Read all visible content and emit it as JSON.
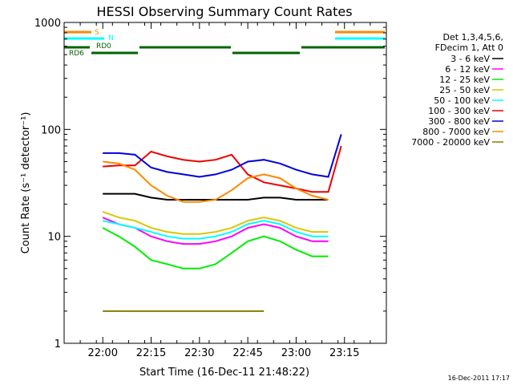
{
  "chart_data": {
    "type": "line",
    "title": "HESSI Observing Summary Count Rates",
    "xlabel": "Start Time (16-Dec-11 21:48:22)",
    "ylabel": "Count Rate (s⁻¹ detector⁻¹)",
    "yscale": "log",
    "ylim": [
      1,
      1000
    ],
    "xlim": [
      "21:48",
      "23:28"
    ],
    "x_tick_labels": [
      "22:00",
      "22:15",
      "22:30",
      "22:45",
      "23:00",
      "23:15"
    ],
    "y_tick_labels": [
      "1",
      "10",
      "100",
      "1000"
    ],
    "grid": false,
    "legend": {
      "placement": "right",
      "header": [
        "Det 1,3,4,5,6,",
        "FDecim 1, Att 0"
      ],
      "entries": [
        {
          "label": "3 - 6 keV",
          "color": "#000000"
        },
        {
          "label": "6 - 12 keV",
          "color": "#ff00ff"
        },
        {
          "label": "12 - 25 keV",
          "color": "#00ee00"
        },
        {
          "label": "25 - 50 keV",
          "color": "#d8c800"
        },
        {
          "label": "50 - 100 keV",
          "color": "#00ffff"
        },
        {
          "label": "100 - 300 keV",
          "color": "#ee0000"
        },
        {
          "label": "300 - 800 keV",
          "color": "#0000dd"
        },
        {
          "label": "800 - 7000 keV",
          "color": "#ff8800"
        },
        {
          "label": "7000 - 20000 keV",
          "color": "#8b7a00"
        }
      ]
    },
    "flags": [
      {
        "label": "S",
        "color": "#ff8800"
      },
      {
        "label": "N",
        "color": "#00ffff"
      },
      {
        "label": "RD0",
        "color": "#006400"
      },
      {
        "label": "RD6",
        "color": "#006400"
      }
    ],
    "series": [
      {
        "name": "3 - 6 keV",
        "x": [
          "22:00",
          "22:05",
          "22:10",
          "22:15",
          "22:20",
          "22:25",
          "22:30",
          "22:35",
          "22:40",
          "22:45",
          "22:50",
          "22:55",
          "23:00",
          "23:05",
          "23:10"
        ],
        "values": [
          25,
          25,
          25,
          23,
          22,
          22,
          22,
          22,
          22,
          22,
          23,
          23,
          22,
          22,
          22
        ]
      },
      {
        "name": "6 - 12 keV",
        "x": [
          "22:00",
          "22:05",
          "22:10",
          "22:15",
          "22:20",
          "22:25",
          "22:30",
          "22:35",
          "22:40",
          "22:45",
          "22:50",
          "22:55",
          "23:00",
          "23:05",
          "23:10"
        ],
        "values": [
          15,
          13,
          12,
          10,
          9,
          8.5,
          8.5,
          9,
          10,
          12,
          13,
          12,
          10,
          9,
          9
        ]
      },
      {
        "name": "12 - 25 keV",
        "x": [
          "22:00",
          "22:05",
          "22:10",
          "22:15",
          "22:20",
          "22:25",
          "22:30",
          "22:35",
          "22:40",
          "22:45",
          "22:50",
          "22:55",
          "23:00",
          "23:05",
          "23:10"
        ],
        "values": [
          12,
          10,
          8,
          6,
          5.5,
          5,
          5,
          5.5,
          7,
          9,
          10,
          9,
          7.5,
          6.5,
          6.5
        ]
      },
      {
        "name": "25 - 50 keV",
        "x": [
          "22:00",
          "22:05",
          "22:10",
          "22:15",
          "22:20",
          "22:25",
          "22:30",
          "22:35",
          "22:40",
          "22:45",
          "22:50",
          "22:55",
          "23:00",
          "23:05",
          "23:10"
        ],
        "values": [
          17,
          15,
          14,
          12,
          11,
          10.5,
          10.5,
          11,
          12,
          14,
          15,
          14,
          12,
          11,
          11
        ]
      },
      {
        "name": "50 - 100 keV",
        "x": [
          "22:00",
          "22:05",
          "22:10",
          "22:15",
          "22:20",
          "22:25",
          "22:30",
          "22:35",
          "22:40",
          "22:45",
          "22:50",
          "22:55",
          "23:00",
          "23:05",
          "23:10"
        ],
        "values": [
          14,
          13,
          12,
          11,
          10,
          9.5,
          9.5,
          10,
          11,
          13,
          14,
          13,
          11,
          10,
          10
        ]
      },
      {
        "name": "100 - 300 keV",
        "x": [
          "22:00",
          "22:05",
          "22:10",
          "22:15",
          "22:20",
          "22:25",
          "22:30",
          "22:35",
          "22:40",
          "22:45",
          "22:50",
          "22:55",
          "23:00",
          "23:05",
          "23:10",
          "23:14"
        ],
        "values": [
          45,
          46,
          46,
          62,
          56,
          52,
          50,
          52,
          58,
          38,
          32,
          30,
          28,
          26,
          26,
          70
        ]
      },
      {
        "name": "300 - 800 keV",
        "x": [
          "22:00",
          "22:05",
          "22:10",
          "22:15",
          "22:20",
          "22:25",
          "22:30",
          "22:35",
          "22:40",
          "22:45",
          "22:50",
          "22:55",
          "23:00",
          "23:05",
          "23:10",
          "23:14"
        ],
        "values": [
          60,
          60,
          58,
          44,
          40,
          38,
          36,
          38,
          42,
          50,
          52,
          48,
          42,
          38,
          36,
          90
        ]
      },
      {
        "name": "800 - 7000 keV",
        "x": [
          "22:00",
          "22:05",
          "22:10",
          "22:15",
          "22:20",
          "22:25",
          "22:30",
          "22:35",
          "22:40",
          "22:45",
          "22:50",
          "22:55",
          "23:00",
          "23:05",
          "23:10"
        ],
        "values": [
          50,
          48,
          42,
          30,
          24,
          21,
          21,
          22,
          27,
          35,
          38,
          35,
          28,
          24,
          22
        ]
      },
      {
        "name": "7000 - 20000 keV",
        "x": [
          "22:00",
          "22:10",
          "22:40",
          "22:50"
        ],
        "values": [
          2,
          2,
          2,
          2
        ]
      }
    ]
  },
  "timestamp": "16-Dec-2011 17:17"
}
